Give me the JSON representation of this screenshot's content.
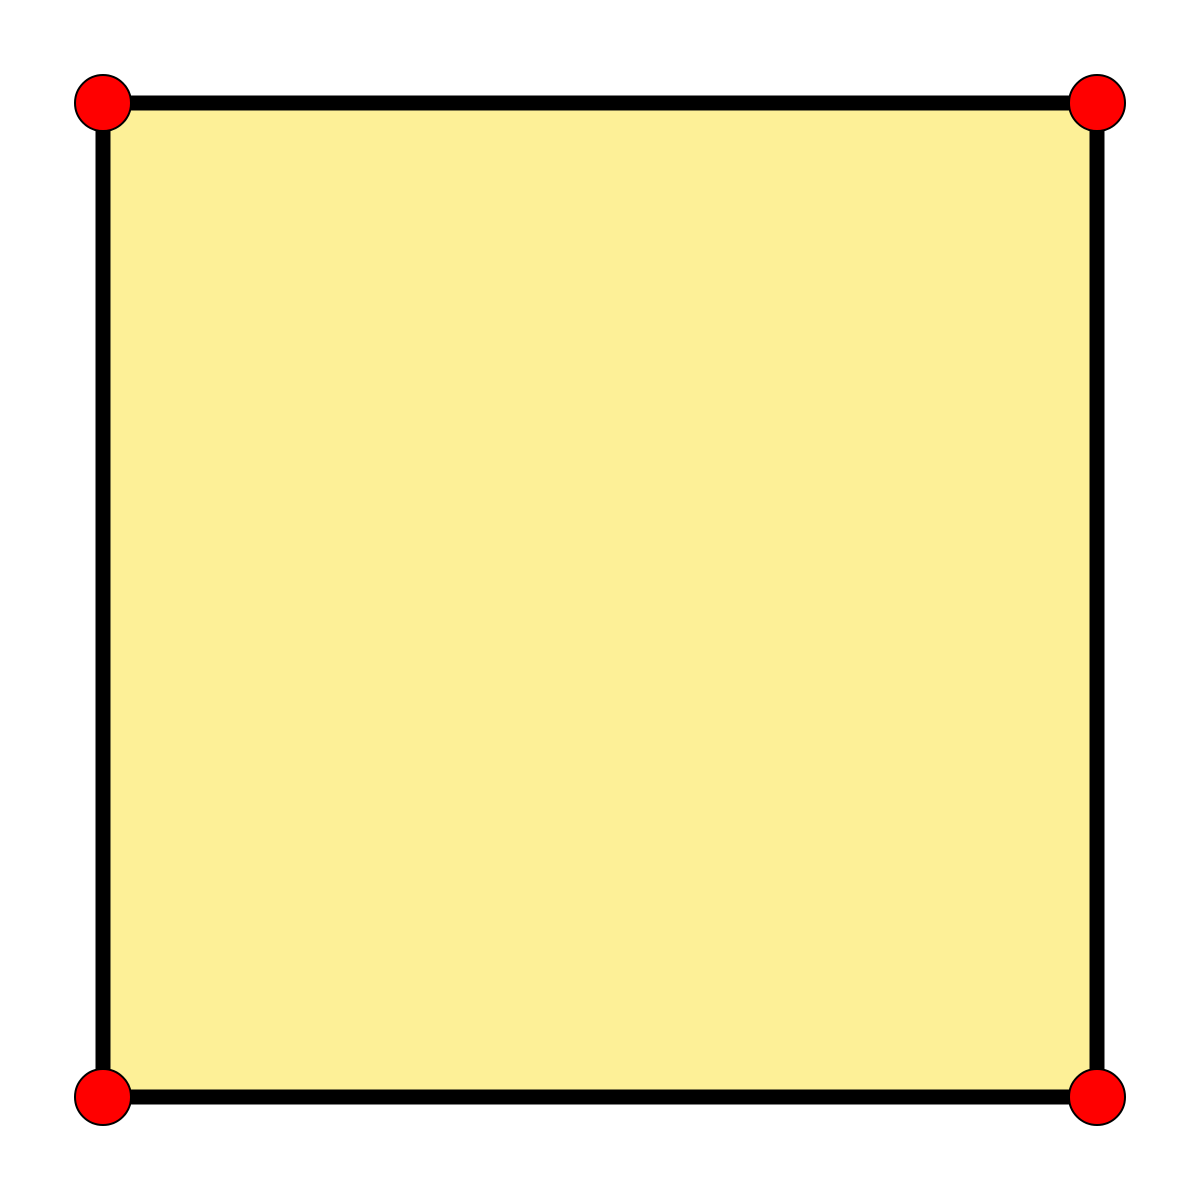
{
  "diagram": {
    "shape": "square",
    "vertex_count": 4,
    "colors": {
      "background": "#ffffff",
      "fill": "#fdf097",
      "edge": "#000000",
      "vertex": "#ff0000",
      "vertex_outline": "#000000"
    }
  }
}
